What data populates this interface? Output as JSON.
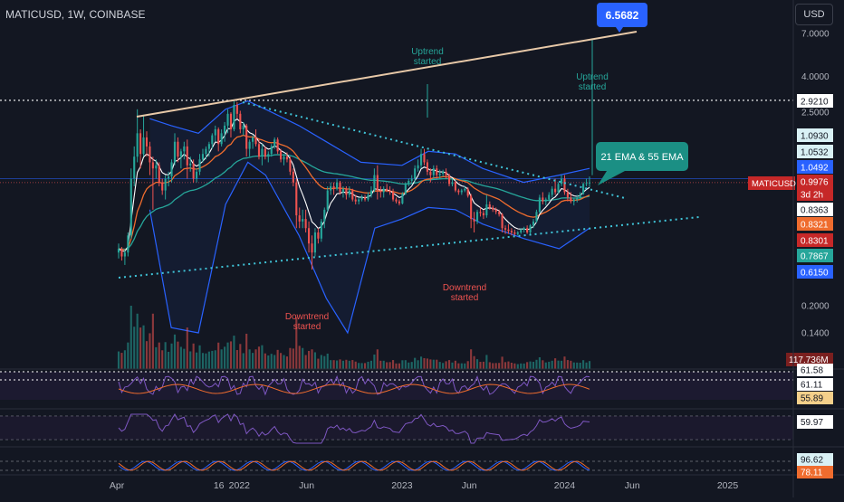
{
  "header": {
    "title": "MATICUSD, 1W, COINBASE",
    "currency": "USD"
  },
  "colors": {
    "background": "#131722",
    "up": "#26a69a",
    "down": "#ef5350",
    "upper_trendline": "#e8c9a8",
    "lower_trendline": "#40c4d8",
    "bollinger": "#2962ff",
    "ema21": "#ef6c2e",
    "ema55": "#26a69a",
    "sma": "#ffffff",
    "label_blue": "#2962ff",
    "label_teal": "#26a69a",
    "label_red": "#c62828"
  },
  "chart_data": {
    "type": "candlestick",
    "symbol": "MATICUSD",
    "timeframe": "1W",
    "exchange": "COINBASE",
    "y_scale": "log",
    "y_ticks": [
      "7.0000",
      "4.0000",
      "2.5000",
      "0.2000",
      "0.1400"
    ],
    "x_ticks": [
      "Apr",
      "16",
      "2022",
      "Jun",
      "2023",
      "Jun",
      "2024",
      "Jun",
      "2025"
    ],
    "price_labels": [
      {
        "text": "2.9210",
        "style": "white"
      },
      {
        "text": "1.0930",
        "style": "light"
      },
      {
        "text": "1.0532",
        "style": "light"
      },
      {
        "text": "1.0492",
        "style": "blue"
      },
      {
        "text": "0.9976",
        "style": "red"
      },
      {
        "text": "3d 2h",
        "style": "red"
      },
      {
        "text": "0.8363",
        "style": "white"
      },
      {
        "text": "0.8321",
        "style": "orange"
      },
      {
        "text": "0.8301",
        "style": "red"
      },
      {
        "text": "0.7867",
        "style": "teal"
      },
      {
        "text": "0.6150",
        "style": "blue"
      }
    ],
    "symbol_tag": "MATICUSD",
    "annotations": {
      "peak_value": "6.5682",
      "ema_box": "21 EMA & 55 EMA",
      "uptrend_label": "Uptrend\nstarted",
      "downtrend_label": "Downtrend\nstarted"
    },
    "candles": [
      {
        "t": "2021-04-05",
        "o": 0.4,
        "h": 0.45,
        "l": 0.37,
        "c": 0.42
      },
      {
        "t": "2021-04-12",
        "o": 0.42,
        "h": 0.43,
        "l": 0.36,
        "c": 0.38
      },
      {
        "t": "2021-04-19",
        "o": 0.38,
        "h": 0.42,
        "l": 0.34,
        "c": 0.4
      },
      {
        "t": "2021-04-26",
        "o": 0.4,
        "h": 0.52,
        "l": 0.38,
        "c": 0.5
      },
      {
        "t": "2021-05-03",
        "o": 0.5,
        "h": 1.2,
        "l": 0.48,
        "c": 1.05
      },
      {
        "t": "2021-05-10",
        "o": 1.05,
        "h": 1.6,
        "l": 0.95,
        "c": 1.4
      },
      {
        "t": "2021-05-17",
        "o": 1.4,
        "h": 2.6,
        "l": 1.3,
        "c": 1.9
      },
      {
        "t": "2021-05-24",
        "o": 1.9,
        "h": 2.0,
        "l": 1.2,
        "c": 1.45
      },
      {
        "t": "2021-05-31",
        "o": 1.45,
        "h": 2.4,
        "l": 1.4,
        "c": 1.8
      },
      {
        "t": "2021-06-07",
        "o": 1.8,
        "h": 1.95,
        "l": 1.4,
        "c": 1.6
      },
      {
        "t": "2021-06-14",
        "o": 1.6,
        "h": 1.7,
        "l": 1.1,
        "c": 1.3
      },
      {
        "t": "2021-06-21",
        "o": 1.3,
        "h": 1.4,
        "l": 0.7,
        "c": 1.2
      },
      {
        "t": "2021-06-28",
        "o": 1.2,
        "h": 1.35,
        "l": 1.05,
        "c": 1.25
      },
      {
        "t": "2021-07-05",
        "o": 1.25,
        "h": 1.3,
        "l": 0.95,
        "c": 1.0
      },
      {
        "t": "2021-07-12",
        "o": 1.0,
        "h": 1.05,
        "l": 0.85,
        "c": 0.9
      },
      {
        "t": "2021-07-19",
        "o": 0.9,
        "h": 1.1,
        "l": 0.8,
        "c": 1.05
      },
      {
        "t": "2021-07-26",
        "o": 1.05,
        "h": 1.15,
        "l": 0.95,
        "c": 1.08
      },
      {
        "t": "2021-08-02",
        "o": 1.08,
        "h": 1.35,
        "l": 1.0,
        "c": 1.3
      },
      {
        "t": "2021-08-09",
        "o": 1.3,
        "h": 1.9,
        "l": 1.25,
        "c": 1.7
      },
      {
        "t": "2021-08-16",
        "o": 1.7,
        "h": 1.8,
        "l": 1.3,
        "c": 1.4
      },
      {
        "t": "2021-08-23",
        "o": 1.4,
        "h": 1.55,
        "l": 1.2,
        "c": 1.5
      },
      {
        "t": "2021-08-30",
        "o": 1.5,
        "h": 1.7,
        "l": 1.35,
        "c": 1.6
      },
      {
        "t": "2021-09-06",
        "o": 1.6,
        "h": 1.75,
        "l": 1.05,
        "c": 1.25
      },
      {
        "t": "2021-09-13",
        "o": 1.25,
        "h": 1.4,
        "l": 1.15,
        "c": 1.28
      },
      {
        "t": "2021-09-20",
        "o": 1.28,
        "h": 1.35,
        "l": 1.0,
        "c": 1.05
      },
      {
        "t": "2021-09-27",
        "o": 1.05,
        "h": 1.2,
        "l": 1.0,
        "c": 1.15
      },
      {
        "t": "2021-10-04",
        "o": 1.15,
        "h": 1.45,
        "l": 1.1,
        "c": 1.35
      },
      {
        "t": "2021-10-11",
        "o": 1.35,
        "h": 1.55,
        "l": 1.3,
        "c": 1.45
      },
      {
        "t": "2021-10-18",
        "o": 1.45,
        "h": 1.6,
        "l": 1.35,
        "c": 1.55
      },
      {
        "t": "2021-10-25",
        "o": 1.55,
        "h": 1.7,
        "l": 1.4,
        "c": 1.65
      },
      {
        "t": "2021-11-01",
        "o": 1.65,
        "h": 1.9,
        "l": 1.55,
        "c": 1.85
      },
      {
        "t": "2021-11-08",
        "o": 1.85,
        "h": 2.1,
        "l": 1.7,
        "c": 2.0
      },
      {
        "t": "2021-11-15",
        "o": 2.0,
        "h": 2.05,
        "l": 1.5,
        "c": 1.65
      },
      {
        "t": "2021-11-22",
        "o": 1.65,
        "h": 2.0,
        "l": 1.6,
        "c": 1.9
      },
      {
        "t": "2021-11-29",
        "o": 1.9,
        "h": 2.2,
        "l": 1.7,
        "c": 2.1
      },
      {
        "t": "2021-12-06",
        "o": 2.1,
        "h": 2.6,
        "l": 1.9,
        "c": 2.45
      },
      {
        "t": "2021-12-13",
        "o": 2.45,
        "h": 2.5,
        "l": 1.8,
        "c": 2.0
      },
      {
        "t": "2021-12-20",
        "o": 2.0,
        "h": 2.92,
        "l": 1.95,
        "c": 2.75
      },
      {
        "t": "2021-12-27",
        "o": 2.75,
        "h": 2.85,
        "l": 2.3,
        "c": 2.45
      },
      {
        "t": "2022-01-03",
        "o": 2.45,
        "h": 2.55,
        "l": 1.9,
        "c": 2.0
      },
      {
        "t": "2022-01-10",
        "o": 2.0,
        "h": 2.2,
        "l": 1.85,
        "c": 2.1
      },
      {
        "t": "2022-01-17",
        "o": 2.1,
        "h": 2.15,
        "l": 1.4,
        "c": 1.55
      },
      {
        "t": "2022-01-24",
        "o": 1.55,
        "h": 1.75,
        "l": 1.4,
        "c": 1.7
      },
      {
        "t": "2022-01-31",
        "o": 1.7,
        "h": 1.85,
        "l": 1.55,
        "c": 1.8
      },
      {
        "t": "2022-02-07",
        "o": 1.8,
        "h": 2.0,
        "l": 1.6,
        "c": 1.65
      },
      {
        "t": "2022-02-14",
        "o": 1.65,
        "h": 1.75,
        "l": 1.35,
        "c": 1.4
      },
      {
        "t": "2022-02-21",
        "o": 1.4,
        "h": 1.65,
        "l": 1.25,
        "c": 1.55
      },
      {
        "t": "2022-02-28",
        "o": 1.55,
        "h": 1.6,
        "l": 1.35,
        "c": 1.4
      },
      {
        "t": "2022-03-07",
        "o": 1.4,
        "h": 1.5,
        "l": 1.3,
        "c": 1.45
      },
      {
        "t": "2022-03-14",
        "o": 1.45,
        "h": 1.65,
        "l": 1.4,
        "c": 1.6
      },
      {
        "t": "2022-03-21",
        "o": 1.6,
        "h": 1.8,
        "l": 1.55,
        "c": 1.75
      },
      {
        "t": "2022-03-28",
        "o": 1.75,
        "h": 1.8,
        "l": 1.45,
        "c": 1.5
      },
      {
        "t": "2022-04-04",
        "o": 1.5,
        "h": 1.55,
        "l": 1.3,
        "c": 1.35
      },
      {
        "t": "2022-04-11",
        "o": 1.35,
        "h": 1.45,
        "l": 1.25,
        "c": 1.4
      },
      {
        "t": "2022-04-18",
        "o": 1.4,
        "h": 1.48,
        "l": 1.3,
        "c": 1.35
      },
      {
        "t": "2022-04-25",
        "o": 1.35,
        "h": 1.4,
        "l": 1.1,
        "c": 1.15
      },
      {
        "t": "2022-05-02",
        "o": 1.15,
        "h": 1.2,
        "l": 0.95,
        "c": 1.0
      },
      {
        "t": "2022-05-09",
        "o": 1.0,
        "h": 1.05,
        "l": 0.55,
        "c": 0.65
      },
      {
        "t": "2022-05-16",
        "o": 0.65,
        "h": 0.72,
        "l": 0.55,
        "c": 0.6
      },
      {
        "t": "2022-05-23",
        "o": 0.6,
        "h": 0.7,
        "l": 0.55,
        "c": 0.62
      },
      {
        "t": "2022-05-30",
        "o": 0.62,
        "h": 0.7,
        "l": 0.52,
        "c": 0.55
      },
      {
        "t": "2022-06-06",
        "o": 0.55,
        "h": 0.6,
        "l": 0.4,
        "c": 0.45
      },
      {
        "t": "2022-06-13",
        "o": 0.45,
        "h": 0.5,
        "l": 0.32,
        "c": 0.4
      },
      {
        "t": "2022-06-20",
        "o": 0.4,
        "h": 0.55,
        "l": 0.38,
        "c": 0.52
      },
      {
        "t": "2022-06-27",
        "o": 0.52,
        "h": 0.55,
        "l": 0.45,
        "c": 0.48
      },
      {
        "t": "2022-07-04",
        "o": 0.48,
        "h": 0.62,
        "l": 0.46,
        "c": 0.6
      },
      {
        "t": "2022-07-11",
        "o": 0.6,
        "h": 0.72,
        "l": 0.55,
        "c": 0.7
      },
      {
        "t": "2022-07-18",
        "o": 0.7,
        "h": 0.95,
        "l": 0.68,
        "c": 0.9
      },
      {
        "t": "2022-07-25",
        "o": 0.9,
        "h": 1.0,
        "l": 0.85,
        "c": 0.95
      },
      {
        "t": "2022-08-01",
        "o": 0.95,
        "h": 1.0,
        "l": 0.85,
        "c": 0.92
      },
      {
        "t": "2022-08-08",
        "o": 0.92,
        "h": 1.05,
        "l": 0.9,
        "c": 1.0
      },
      {
        "t": "2022-08-15",
        "o": 1.0,
        "h": 1.02,
        "l": 0.85,
        "c": 0.88
      },
      {
        "t": "2022-08-22",
        "o": 0.88,
        "h": 0.95,
        "l": 0.82,
        "c": 0.92
      },
      {
        "t": "2022-08-29",
        "o": 0.92,
        "h": 0.95,
        "l": 0.8,
        "c": 0.85
      },
      {
        "t": "2022-09-05",
        "o": 0.85,
        "h": 0.95,
        "l": 0.82,
        "c": 0.9
      },
      {
        "t": "2022-09-12",
        "o": 0.9,
        "h": 0.92,
        "l": 0.78,
        "c": 0.8
      },
      {
        "t": "2022-09-19",
        "o": 0.8,
        "h": 0.85,
        "l": 0.75,
        "c": 0.78
      },
      {
        "t": "2022-09-26",
        "o": 0.78,
        "h": 0.82,
        "l": 0.75,
        "c": 0.8
      },
      {
        "t": "2022-10-03",
        "o": 0.8,
        "h": 0.85,
        "l": 0.78,
        "c": 0.82
      },
      {
        "t": "2022-10-10",
        "o": 0.82,
        "h": 0.85,
        "l": 0.78,
        "c": 0.8
      },
      {
        "t": "2022-10-17",
        "o": 0.8,
        "h": 0.88,
        "l": 0.78,
        "c": 0.85
      },
      {
        "t": "2022-10-24",
        "o": 0.85,
        "h": 0.95,
        "l": 0.82,
        "c": 0.9
      },
      {
        "t": "2022-10-31",
        "o": 0.9,
        "h": 1.2,
        "l": 0.88,
        "c": 1.1
      },
      {
        "t": "2022-11-07",
        "o": 1.1,
        "h": 1.25,
        "l": 0.8,
        "c": 0.9
      },
      {
        "t": "2022-11-14",
        "o": 0.9,
        "h": 0.95,
        "l": 0.82,
        "c": 0.88
      },
      {
        "t": "2022-11-21",
        "o": 0.88,
        "h": 0.95,
        "l": 0.82,
        "c": 0.92
      },
      {
        "t": "2022-11-28",
        "o": 0.92,
        "h": 0.98,
        "l": 0.88,
        "c": 0.9
      },
      {
        "t": "2022-12-05",
        "o": 0.9,
        "h": 0.95,
        "l": 0.85,
        "c": 0.88
      },
      {
        "t": "2022-12-12",
        "o": 0.88,
        "h": 0.92,
        "l": 0.78,
        "c": 0.8
      },
      {
        "t": "2022-12-19",
        "o": 0.8,
        "h": 0.82,
        "l": 0.76,
        "c": 0.78
      },
      {
        "t": "2022-12-26",
        "o": 0.78,
        "h": 0.8,
        "l": 0.74,
        "c": 0.76
      },
      {
        "t": "2023-01-02",
        "o": 0.76,
        "h": 0.88,
        "l": 0.75,
        "c": 0.86
      },
      {
        "t": "2023-01-09",
        "o": 0.86,
        "h": 1.0,
        "l": 0.85,
        "c": 0.98
      },
      {
        "t": "2023-01-16",
        "o": 0.98,
        "h": 1.05,
        "l": 0.95,
        "c": 1.02
      },
      {
        "t": "2023-01-23",
        "o": 1.02,
        "h": 1.1,
        "l": 0.98,
        "c": 1.05
      },
      {
        "t": "2023-01-30",
        "o": 1.05,
        "h": 1.25,
        "l": 1.0,
        "c": 1.2
      },
      {
        "t": "2023-02-06",
        "o": 1.2,
        "h": 1.35,
        "l": 1.15,
        "c": 1.25
      },
      {
        "t": "2023-02-13",
        "o": 1.25,
        "h": 1.55,
        "l": 1.2,
        "c": 1.45
      },
      {
        "t": "2023-02-20",
        "o": 1.45,
        "h": 1.55,
        "l": 1.25,
        "c": 1.3
      },
      {
        "t": "2023-02-27",
        "o": 1.3,
        "h": 1.35,
        "l": 1.1,
        "c": 1.15
      },
      {
        "t": "2023-03-06",
        "o": 1.15,
        "h": 1.2,
        "l": 1.0,
        "c": 1.1
      },
      {
        "t": "2023-03-13",
        "o": 1.1,
        "h": 1.25,
        "l": 1.05,
        "c": 1.2
      },
      {
        "t": "2023-03-20",
        "o": 1.2,
        "h": 1.25,
        "l": 1.05,
        "c": 1.1
      },
      {
        "t": "2023-03-27",
        "o": 1.1,
        "h": 1.18,
        "l": 1.05,
        "c": 1.12
      },
      {
        "t": "2023-04-03",
        "o": 1.12,
        "h": 1.18,
        "l": 1.08,
        "c": 1.15
      },
      {
        "t": "2023-04-10",
        "o": 1.15,
        "h": 1.2,
        "l": 1.05,
        "c": 1.1
      },
      {
        "t": "2023-04-17",
        "o": 1.1,
        "h": 1.12,
        "l": 0.95,
        "c": 0.98
      },
      {
        "t": "2023-04-24",
        "o": 0.98,
        "h": 1.05,
        "l": 0.95,
        "c": 1.0
      },
      {
        "t": "2023-05-01",
        "o": 1.0,
        "h": 1.02,
        "l": 0.88,
        "c": 0.9
      },
      {
        "t": "2023-05-08",
        "o": 0.9,
        "h": 0.92,
        "l": 0.85,
        "c": 0.88
      },
      {
        "t": "2023-05-15",
        "o": 0.88,
        "h": 0.92,
        "l": 0.85,
        "c": 0.9
      },
      {
        "t": "2023-05-22",
        "o": 0.9,
        "h": 0.95,
        "l": 0.88,
        "c": 0.92
      },
      {
        "t": "2023-05-29",
        "o": 0.92,
        "h": 0.94,
        "l": 0.82,
        "c": 0.84
      },
      {
        "t": "2023-06-05",
        "o": 0.84,
        "h": 0.86,
        "l": 0.55,
        "c": 0.62
      },
      {
        "t": "2023-06-12",
        "o": 0.62,
        "h": 0.68,
        "l": 0.52,
        "c": 0.6
      },
      {
        "t": "2023-06-19",
        "o": 0.6,
        "h": 0.7,
        "l": 0.58,
        "c": 0.68
      },
      {
        "t": "2023-06-26",
        "o": 0.68,
        "h": 0.72,
        "l": 0.64,
        "c": 0.67
      },
      {
        "t": "2023-07-03",
        "o": 0.67,
        "h": 0.7,
        "l": 0.62,
        "c": 0.65
      },
      {
        "t": "2023-07-10",
        "o": 0.65,
        "h": 0.85,
        "l": 0.63,
        "c": 0.75
      },
      {
        "t": "2023-07-17",
        "o": 0.75,
        "h": 0.78,
        "l": 0.7,
        "c": 0.72
      },
      {
        "t": "2023-07-24",
        "o": 0.72,
        "h": 0.74,
        "l": 0.68,
        "c": 0.7
      },
      {
        "t": "2023-07-31",
        "o": 0.7,
        "h": 0.72,
        "l": 0.66,
        "c": 0.68
      },
      {
        "t": "2023-08-07",
        "o": 0.68,
        "h": 0.7,
        "l": 0.64,
        "c": 0.66
      },
      {
        "t": "2023-08-14",
        "o": 0.66,
        "h": 0.67,
        "l": 0.52,
        "c": 0.55
      },
      {
        "t": "2023-08-21",
        "o": 0.55,
        "h": 0.57,
        "l": 0.51,
        "c": 0.54
      },
      {
        "t": "2023-08-28",
        "o": 0.54,
        "h": 0.58,
        "l": 0.51,
        "c": 0.53
      },
      {
        "t": "2023-09-04",
        "o": 0.53,
        "h": 0.55,
        "l": 0.5,
        "c": 0.52
      },
      {
        "t": "2023-09-11",
        "o": 0.52,
        "h": 0.54,
        "l": 0.5,
        "c": 0.51
      },
      {
        "t": "2023-09-18",
        "o": 0.51,
        "h": 0.53,
        "l": 0.5,
        "c": 0.52
      },
      {
        "t": "2023-09-25",
        "o": 0.52,
        "h": 0.55,
        "l": 0.51,
        "c": 0.54
      },
      {
        "t": "2023-10-02",
        "o": 0.54,
        "h": 0.56,
        "l": 0.52,
        "c": 0.55
      },
      {
        "t": "2023-10-09",
        "o": 0.55,
        "h": 0.57,
        "l": 0.51,
        "c": 0.52
      },
      {
        "t": "2023-10-16",
        "o": 0.52,
        "h": 0.58,
        "l": 0.51,
        "c": 0.57
      },
      {
        "t": "2023-10-23",
        "o": 0.57,
        "h": 0.62,
        "l": 0.55,
        "c": 0.6
      },
      {
        "t": "2023-10-30",
        "o": 0.6,
        "h": 0.7,
        "l": 0.59,
        "c": 0.68
      },
      {
        "t": "2023-11-06",
        "o": 0.68,
        "h": 0.85,
        "l": 0.67,
        "c": 0.82
      },
      {
        "t": "2023-11-13",
        "o": 0.82,
        "h": 0.88,
        "l": 0.75,
        "c": 0.78
      },
      {
        "t": "2023-11-20",
        "o": 0.78,
        "h": 0.82,
        "l": 0.74,
        "c": 0.8
      },
      {
        "t": "2023-11-27",
        "o": 0.8,
        "h": 0.88,
        "l": 0.78,
        "c": 0.85
      },
      {
        "t": "2023-12-04",
        "o": 0.85,
        "h": 0.95,
        "l": 0.82,
        "c": 0.92
      },
      {
        "t": "2023-12-11",
        "o": 0.92,
        "h": 1.05,
        "l": 0.85,
        "c": 0.88
      },
      {
        "t": "2023-12-18",
        "o": 0.88,
        "h": 1.0,
        "l": 0.86,
        "c": 0.98
      },
      {
        "t": "2023-12-25",
        "o": 0.98,
        "h": 1.1,
        "l": 0.95,
        "c": 1.05
      },
      {
        "t": "2024-01-01",
        "o": 1.05,
        "h": 1.1,
        "l": 0.85,
        "c": 0.88
      },
      {
        "t": "2024-01-08",
        "o": 0.88,
        "h": 0.92,
        "l": 0.78,
        "c": 0.82
      },
      {
        "t": "2024-01-15",
        "o": 0.82,
        "h": 0.88,
        "l": 0.76,
        "c": 0.78
      },
      {
        "t": "2024-01-22",
        "o": 0.78,
        "h": 0.82,
        "l": 0.74,
        "c": 0.8
      },
      {
        "t": "2024-01-29",
        "o": 0.8,
        "h": 0.85,
        "l": 0.77,
        "c": 0.82
      },
      {
        "t": "2024-02-05",
        "o": 0.82,
        "h": 0.88,
        "l": 0.8,
        "c": 0.86
      },
      {
        "t": "2024-02-12",
        "o": 0.86,
        "h": 1.0,
        "l": 0.85,
        "c": 0.98
      },
      {
        "t": "2024-02-19",
        "o": 0.98,
        "h": 1.05,
        "l": 0.95,
        "c": 0.99
      },
      {
        "t": "2024-02-26",
        "o": 0.99,
        "h": 1.08,
        "l": 0.94,
        "c": 0.9976
      }
    ],
    "volume_label": "117.736M",
    "rsi_labels": [
      "61.58",
      "61.11",
      "55.89"
    ],
    "osc_labels": [
      "59.97"
    ],
    "stoch_labels": [
      "96.62",
      "78.11"
    ]
  }
}
